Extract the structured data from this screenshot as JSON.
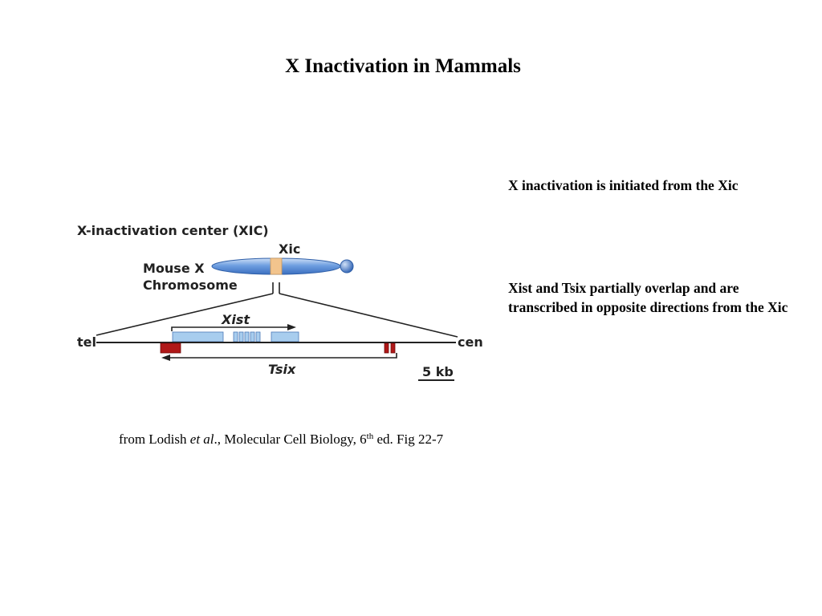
{
  "slide": {
    "title": "X Inactivation in Mammals"
  },
  "notes": [
    "X inactivation is initiated from the Xic",
    "Xist and Tsix partially overlap and are transcribed in opposite directions from the Xic"
  ],
  "figure": {
    "heading": "X-inactivation center (XIC)",
    "chromosome_label_line1": "Mouse X",
    "chromosome_label_line2": "Chromosome",
    "xic_label": "Xic",
    "xist_label": "Xist",
    "tsix_label": "Tsix",
    "tel_label": "tel",
    "cen_label": "cen",
    "scale_label": "5 kb",
    "colors": {
      "chromosome": "#5b8fd6",
      "xic_band": "#f2c48d",
      "exon": "#a8cdee",
      "tsix_exon": "#b01818",
      "line": "#222222"
    }
  },
  "caption": {
    "prefix": "from Lodish ",
    "italic": "et al",
    "middle": "., Molecular Cell Biology, 6",
    "superscript": "th",
    "suffix": " ed. Fig 22-7"
  }
}
